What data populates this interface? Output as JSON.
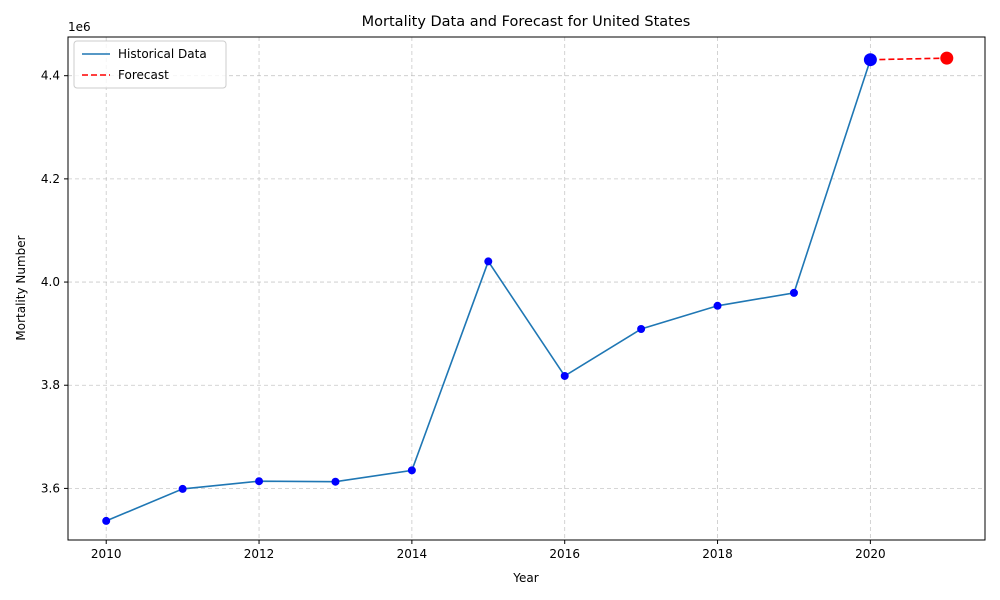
{
  "chart_data": {
    "type": "line",
    "title": "Mortality Data and Forecast for United States",
    "xlabel": "Year",
    "ylabel": "Mortality Number",
    "y_offset_label": "1e6",
    "xlim": [
      2009.5,
      2021.5
    ],
    "ylim": [
      3.5,
      4.475
    ],
    "y_unit_multiplier": 1000000,
    "x_ticks": [
      2010,
      2012,
      2014,
      2016,
      2018,
      2020
    ],
    "y_ticks": [
      3.6,
      3.8,
      4.0,
      4.2,
      4.4
    ],
    "y_tick_labels": [
      "3.6",
      "3.8",
      "4.0",
      "4.2",
      "4.4"
    ],
    "grid": true,
    "legend_position": "top-left",
    "series": [
      {
        "name": "Historical Data",
        "style": "solid",
        "color": "#1f77b4",
        "marker_color": "#0000ff",
        "x": [
          2010,
          2011,
          2012,
          2013,
          2014,
          2015,
          2016,
          2017,
          2018,
          2019,
          2020
        ],
        "y": [
          3.537,
          3.599,
          3.614,
          3.613,
          3.635,
          4.04,
          3.818,
          3.909,
          3.954,
          3.979,
          4.431
        ]
      },
      {
        "name": "Forecast",
        "style": "dashed",
        "color": "#ff0000",
        "marker_color": "#ff0000",
        "x": [
          2020,
          2021
        ],
        "y": [
          4.431,
          4.434
        ]
      }
    ],
    "highlight_points": [
      {
        "x": 2020,
        "y": 4.431,
        "color": "#0000ff"
      },
      {
        "x": 2021,
        "y": 4.434,
        "color": "#ff0000"
      }
    ]
  }
}
